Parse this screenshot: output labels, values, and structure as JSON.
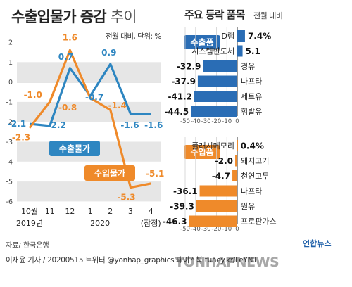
{
  "title": {
    "main": "수출입물가 증감",
    "suffix": "추이"
  },
  "unit_note": "전월 대비, 단위: %",
  "right_title": "주요 등락 품목",
  "right_subtitle": "전월 대비",
  "colors": {
    "export": "#2e86c1",
    "import": "#ef8a2a",
    "bar_export": "#2a6db5",
    "bar_import": "#ef8a2a",
    "band": "#e6e6e6"
  },
  "chart_data": [
    {
      "type": "line",
      "ylim": [
        -6,
        2
      ],
      "x": [
        "10월\n2019년",
        "11",
        "12",
        "1",
        "2\n2020",
        "3",
        "4\n(잠정)"
      ],
      "x_ticks": [
        "10월",
        "11",
        "12",
        "1",
        "2",
        "3",
        "4"
      ],
      "x_sublabels": [
        "2019년",
        "2020",
        "(잠정)"
      ],
      "y_ticks": [
        "2",
        "1",
        "0",
        "-1",
        "-2",
        "-3",
        "-4",
        "-5",
        "-6"
      ],
      "series": [
        {
          "name": "수출물가",
          "values": [
            -2.1,
            -2.2,
            0.7,
            -0.7,
            0.9,
            -1.6,
            -1.6
          ],
          "labels": [
            "-2.1",
            "-2.2",
            "0.7",
            "-0.7",
            "0.9",
            "-1.6",
            "-1.6"
          ]
        },
        {
          "name": "수입물가",
          "values": [
            -2.3,
            -1.0,
            1.6,
            -0.8,
            -1.4,
            -5.3,
            -5.1
          ],
          "labels": [
            "-2.3",
            "-1.0",
            "1.6",
            "-0.8",
            "-1.4",
            "-5.3",
            "-5.1"
          ]
        }
      ]
    },
    {
      "type": "bar",
      "section": "수출품",
      "x_ticks": [
        "-50",
        "-40",
        "-30",
        "-20",
        "-10",
        "0"
      ],
      "xlim": [
        -50,
        10
      ],
      "categories": [
        "D램",
        "시스템반도체",
        "경유",
        "나프타",
        "제트유",
        "휘발유"
      ],
      "values": [
        7.4,
        5.1,
        -32.9,
        -37.9,
        -41.2,
        -44.5
      ],
      "labels": [
        "7.4%",
        "5.1",
        "-32.9",
        "-37.9",
        "-41.2",
        "-44.5"
      ]
    },
    {
      "type": "bar",
      "section": "수입품",
      "x_ticks": [
        "-50",
        "-40",
        "-30",
        "-20",
        "-10",
        "0"
      ],
      "xlim": [
        -50,
        10
      ],
      "categories": [
        "플래시메모리",
        "돼지고기",
        "천연고무",
        "나프타",
        "원유",
        "프로판가스"
      ],
      "values": [
        0.4,
        -2.0,
        -4.7,
        -36.1,
        -39.3,
        -46.3
      ],
      "labels": [
        "0.4%",
        "-2.0",
        "-4.7",
        "-36.1",
        "-39.3",
        "-46.3"
      ]
    }
  ],
  "source": "자료/ 한국은행",
  "byline": "이재윤 기자 / 20200515  트위터 @yonhap_graphics  페이스북 tuney.kr/LeYN1",
  "watermark": "YONHAPNEWS",
  "agency_logo": "연합뉴스"
}
